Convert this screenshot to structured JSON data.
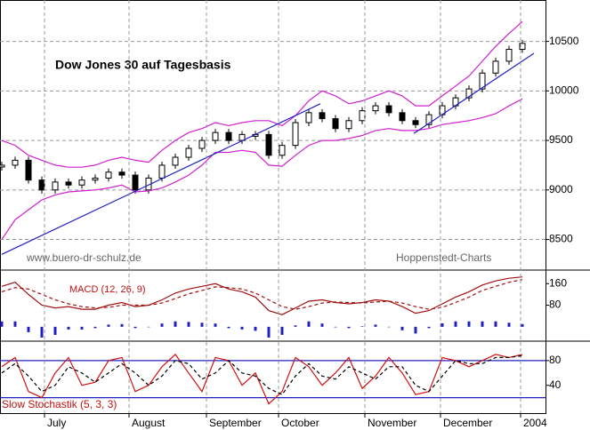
{
  "chart_data": [
    {
      "type": "candlestick",
      "title": "Dow Jones 30 auf Tagesbasis",
      "annotations": [
        "www.buero-dr-schulz.de",
        "Hoppenstedt-Charts"
      ],
      "x": [
        0,
        3,
        6,
        9,
        12,
        15,
        18,
        21,
        24,
        27,
        30,
        33,
        36,
        39,
        42,
        45,
        48,
        51,
        54,
        57,
        60,
        63,
        66,
        69,
        72,
        75,
        78,
        81,
        84,
        87,
        90,
        93,
        96,
        99,
        102,
        105,
        108,
        111,
        114,
        117
      ],
      "xlim": [
        -0.4,
        122.2
      ],
      "ylim": [
        8200,
        10900
      ],
      "yticks": [
        8500,
        9000,
        9500,
        10000,
        10500
      ],
      "grid": true,
      "series": [
        {
          "style": "candle",
          "color": "#000000",
          "values": [
            9250,
            9300,
            9100,
            9000,
            9080,
            9050,
            9100,
            9120,
            9180,
            9150,
            9000,
            9120,
            9250,
            9330,
            9420,
            9500,
            9580,
            9500,
            9560,
            9560,
            9350,
            9450,
            9680,
            9780,
            9720,
            9620,
            9700,
            9800,
            9850,
            9780,
            9700,
            9660,
            9760,
            9850,
            9930,
            10020,
            10180,
            10300,
            10420,
            10480
          ]
        },
        {
          "style": "solid",
          "color": "#d020d0",
          "values": [
            9500,
            9450,
            9350,
            9300,
            9250,
            9230,
            9230,
            9250,
            9300,
            9330,
            9300,
            9280,
            9400,
            9500,
            9580,
            9620,
            9680,
            9650,
            9680,
            9700,
            9700,
            9650,
            9750,
            9900,
            10000,
            9950,
            9870,
            9900,
            9950,
            10000,
            9950,
            9850,
            9850,
            9950,
            10050,
            10150,
            10300,
            10450,
            10580,
            10700
          ]
        },
        {
          "style": "solid",
          "color": "#d020d0",
          "values": [
            8500,
            8700,
            8800,
            8900,
            8950,
            8980,
            8990,
            9000,
            9020,
            9050,
            8980,
            8990,
            9020,
            9080,
            9150,
            9250,
            9380,
            9380,
            9400,
            9380,
            9250,
            9240,
            9350,
            9450,
            9500,
            9500,
            9520,
            9550,
            9600,
            9620,
            9600,
            9600,
            9620,
            9660,
            9680,
            9700,
            9730,
            9770,
            9850,
            9920
          ]
        }
      ],
      "trendlines": [
        {
          "color": "#2020c0",
          "x": [
            0,
            71.6
          ],
          "values": [
            8350,
            9870
          ]
        },
        {
          "color": "#2020c0",
          "x": [
            92.6,
            119.6
          ],
          "values": [
            9570,
            10380
          ]
        }
      ]
    },
    {
      "type": "line",
      "title": "MACD (12, 26, 9)",
      "x": [
        0,
        3,
        6,
        9,
        12,
        15,
        18,
        21,
        24,
        27,
        30,
        33,
        36,
        39,
        42,
        45,
        48,
        51,
        54,
        57,
        60,
        63,
        66,
        69,
        72,
        75,
        78,
        81,
        84,
        87,
        90,
        93,
        96,
        99,
        102,
        105,
        108,
        111,
        114,
        117
      ],
      "xlim": [
        -0.4,
        122.2
      ],
      "ylim": [
        -50,
        207
      ],
      "yticks": [
        80,
        160
      ],
      "series": [
        {
          "style": "solid",
          "color": "#a01010",
          "values": [
            150,
            165,
            120,
            80,
            70,
            75,
            65,
            65,
            80,
            90,
            75,
            80,
            100,
            125,
            140,
            150,
            160,
            140,
            130,
            110,
            60,
            45,
            70,
            95,
            100,
            90,
            85,
            90,
            100,
            95,
            75,
            50,
            60,
            85,
            110,
            130,
            155,
            170,
            180,
            185
          ]
        },
        {
          "style": "dashed",
          "color": "#a01010",
          "values": [
            130,
            145,
            140,
            120,
            100,
            85,
            75,
            70,
            72,
            80,
            80,
            80,
            88,
            105,
            122,
            135,
            148,
            145,
            140,
            125,
            100,
            75,
            65,
            75,
            88,
            92,
            90,
            88,
            92,
            95,
            88,
            75,
            65,
            72,
            90,
            110,
            135,
            150,
            165,
            175
          ]
        },
        {
          "style": "bars",
          "color": "#2020c0",
          "values": [
            20,
            20,
            -20,
            -40,
            -30,
            -10,
            -10,
            -5,
            8,
            10,
            -5,
            0,
            12,
            20,
            18,
            15,
            12,
            -5,
            -10,
            -15,
            -40,
            -30,
            5,
            20,
            12,
            -2,
            -5,
            2,
            8,
            0,
            -13,
            -25,
            -5,
            13,
            20,
            20,
            20,
            20,
            15,
            10
          ]
        }
      ]
    },
    {
      "type": "line",
      "title": "Slow Stochastik (5, 3, 3)",
      "x": [
        0,
        3,
        6,
        9,
        12,
        15,
        18,
        21,
        24,
        27,
        30,
        33,
        36,
        39,
        42,
        45,
        48,
        51,
        54,
        57,
        60,
        63,
        66,
        69,
        72,
        75,
        78,
        81,
        84,
        87,
        90,
        93,
        96,
        99,
        102,
        105,
        108,
        111,
        114,
        117
      ],
      "xlim": [
        -0.4,
        122.2
      ],
      "ylim": [
        -5,
        110
      ],
      "yticks": [
        40,
        80
      ],
      "levels": [
        20,
        80
      ],
      "level_color": "#2020c0",
      "xticks": [
        {
          "value": 9.6,
          "label": "July"
        },
        {
          "value": 28.6,
          "label": "August"
        },
        {
          "value": 46,
          "label": "September"
        },
        {
          "value": 62.2,
          "label": "October"
        },
        {
          "value": 81.6,
          "label": "November"
        },
        {
          "value": 98.6,
          "label": "December"
        },
        {
          "value": 116.6,
          "label": "2004"
        }
      ],
      "series": [
        {
          "style": "solid",
          "color": "#d01010",
          "values": [
            70,
            85,
            30,
            20,
            60,
            85,
            40,
            45,
            80,
            85,
            30,
            40,
            70,
            90,
            60,
            30,
            85,
            80,
            40,
            60,
            10,
            30,
            85,
            70,
            40,
            60,
            85,
            35,
            55,
            85,
            60,
            25,
            30,
            85,
            80,
            70,
            80,
            90,
            85,
            90
          ]
        },
        {
          "style": "dashed",
          "color": "#000000",
          "values": [
            60,
            75,
            55,
            30,
            40,
            70,
            60,
            45,
            60,
            75,
            60,
            40,
            55,
            80,
            75,
            50,
            60,
            80,
            60,
            55,
            35,
            25,
            55,
            75,
            55,
            50,
            70,
            60,
            50,
            70,
            70,
            40,
            30,
            55,
            80,
            75,
            75,
            85,
            85,
            88
          ]
        }
      ]
    }
  ]
}
